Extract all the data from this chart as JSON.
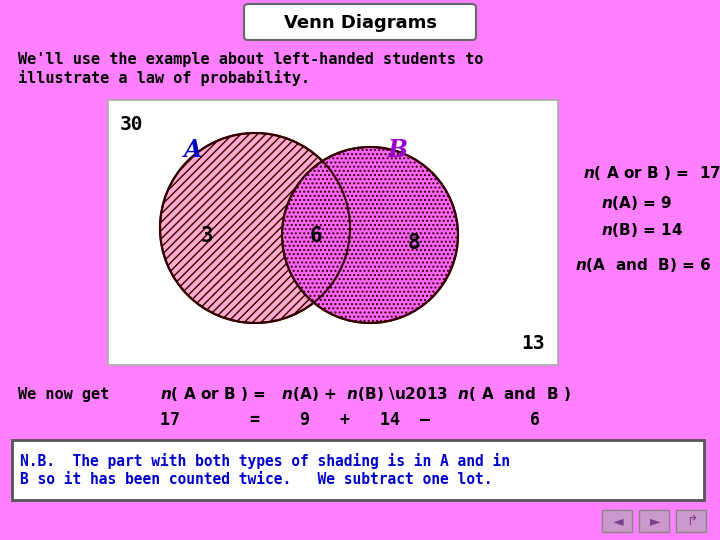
{
  "bg_color": "#FF80FF",
  "title": "Venn Diagrams",
  "venn_box_bg": "#FFFFFF",
  "label_A_color": "#0000CC",
  "label_B_color": "#9900CC",
  "val_color": "#000000",
  "circle_A_face": "#FFB6C1",
  "circle_B_face": "#FF80FF",
  "circle_A_hatch": "////",
  "circle_B_hatch": "....",
  "label_A": "A",
  "label_B": "B",
  "val_A_only": "3",
  "val_AB": "6",
  "val_B_only": "8",
  "val_outside": "30",
  "val_bottom_right": "13",
  "nb_text_line1": "N.B.  The part with both types of shading is in A and in",
  "nb_text_line2": "B so it has been counted twice.   We subtract one lot.",
  "nav_color": "#9966AA"
}
